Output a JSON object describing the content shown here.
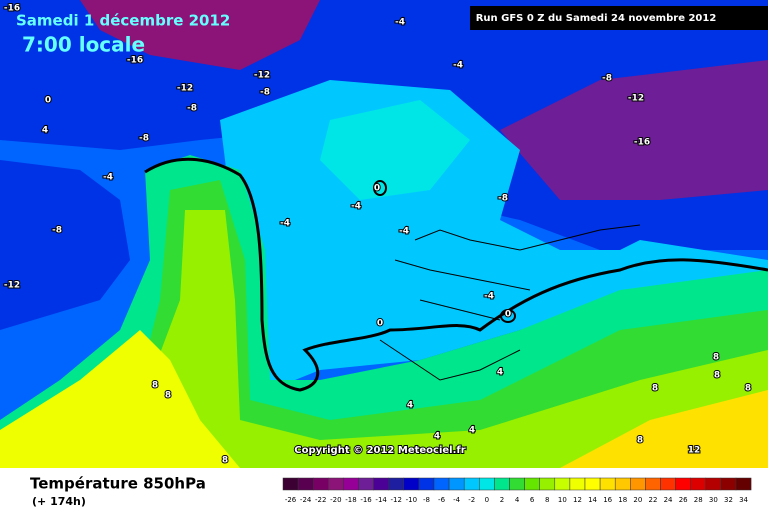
{
  "header": {
    "date": "Samedi 1 décembre 2012",
    "time": "7:00 locale",
    "run": "Run GFS 0 Z du Samedi 24 novembre 2012"
  },
  "copyright": "Copyright © 2012 Meteociel.fr",
  "footer": {
    "title": "Température 850hPa",
    "lead": "(+ 174h)"
  },
  "map": {
    "contour_labels": [
      -16,
      -4,
      -4,
      -16,
      -12,
      -12,
      -8,
      -8,
      0,
      4,
      -8,
      -4,
      -8,
      -12,
      -8,
      -12,
      -16,
      -8,
      0,
      -4,
      -4,
      -4,
      -4,
      0,
      0,
      4,
      4,
      4,
      4,
      8,
      8,
      8,
      8,
      8,
      8,
      8,
      8,
      12
    ]
  },
  "legend": {
    "ticks": [
      -26,
      -24,
      -22,
      -20,
      -18,
      -16,
      -14,
      -12,
      -10,
      -8,
      -6,
      -4,
      -2,
      0,
      2,
      4,
      6,
      8,
      10,
      12,
      14,
      16,
      18,
      20,
      22,
      24,
      26,
      28,
      30,
      32,
      34
    ],
    "colors": [
      "#3c0032",
      "#5a0050",
      "#780064",
      "#8c1478",
      "#960096",
      "#6e1e96",
      "#4b0096",
      "#1e1ea0",
      "#0000c8",
      "#0032e6",
      "#0064ff",
      "#0096ff",
      "#00c8ff",
      "#00e6e6",
      "#00e68c",
      "#32dc32",
      "#64e600",
      "#96f000",
      "#c8ff00",
      "#f0ff00",
      "#ffff00",
      "#ffe100",
      "#ffc800",
      "#ff9600",
      "#ff6400",
      "#ff3200",
      "#ff0000",
      "#dc0000",
      "#b40000",
      "#8c0000",
      "#640000"
    ]
  }
}
